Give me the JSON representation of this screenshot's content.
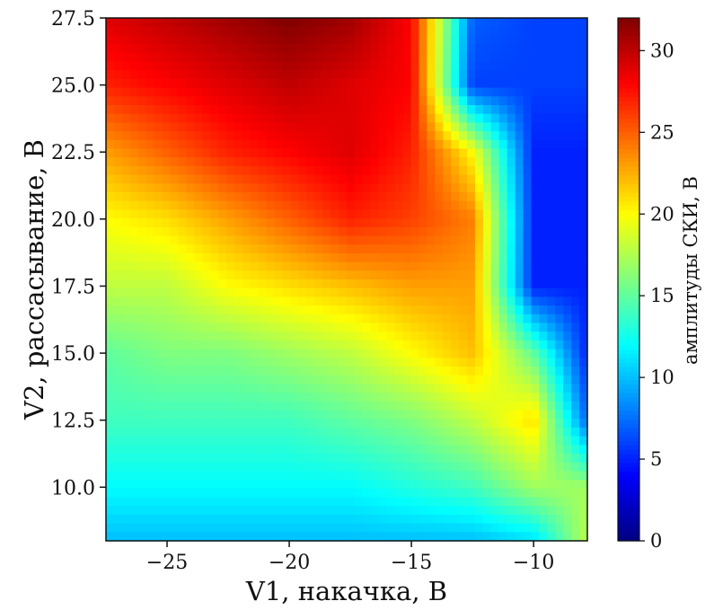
{
  "chart_data": {
    "type": "heatmap",
    "title": "",
    "xlabel": "V1, накачка, В",
    "ylabel": "V2, рассасывание, В",
    "xlim": [
      -27.5,
      -7.8
    ],
    "ylim": [
      8.0,
      27.5
    ],
    "x_ticks": [
      -25,
      -20,
      -15,
      -10
    ],
    "x_tick_labels": [
      "−25",
      "−20",
      "−15",
      "−10"
    ],
    "y_ticks": [
      10.0,
      12.5,
      15.0,
      17.5,
      20.0,
      22.5,
      25.0,
      27.5
    ],
    "y_tick_labels": [
      "10.0",
      "12.5",
      "15.0",
      "17.5",
      "20.0",
      "22.5",
      "25.0",
      "27.5"
    ],
    "colormap": "jet",
    "colorbar": {
      "label": "амплитуды СКИ, В",
      "range": [
        0,
        32
      ],
      "ticks": [
        0,
        5,
        10,
        15,
        20,
        25,
        30
      ],
      "tick_labels": [
        "0",
        "5",
        "10",
        "15",
        "20",
        "25",
        "30"
      ]
    },
    "grid_x": [
      -27.5,
      -25.0,
      -22.5,
      -20.0,
      -17.5,
      -15.0,
      -12.5,
      -10.0,
      -7.8
    ],
    "grid_y": [
      27.5,
      25.0,
      22.5,
      20.0,
      17.5,
      15.0,
      12.5,
      10.0,
      8.0
    ],
    "z": [
      [
        29,
        30,
        31,
        32,
        31,
        28,
        7,
        6,
        6
      ],
      [
        27,
        28,
        29,
        30,
        29,
        28,
        6,
        6,
        6
      ],
      [
        23,
        25,
        27,
        28,
        29,
        27,
        20,
        5,
        5
      ],
      [
        20,
        21,
        23,
        25,
        27,
        26,
        24,
        5,
        5
      ],
      [
        18,
        18,
        20,
        21,
        22,
        23,
        23,
        5,
        5
      ],
      [
        15,
        16,
        16,
        17,
        18,
        20,
        22,
        15,
        5
      ],
      [
        14,
        14,
        14,
        14,
        15,
        16,
        18,
        21,
        7
      ],
      [
        12,
        12,
        12,
        12,
        12,
        13,
        14,
        17,
        17
      ],
      [
        10,
        10,
        10,
        10,
        10,
        10,
        10,
        11,
        18
      ]
    ]
  }
}
